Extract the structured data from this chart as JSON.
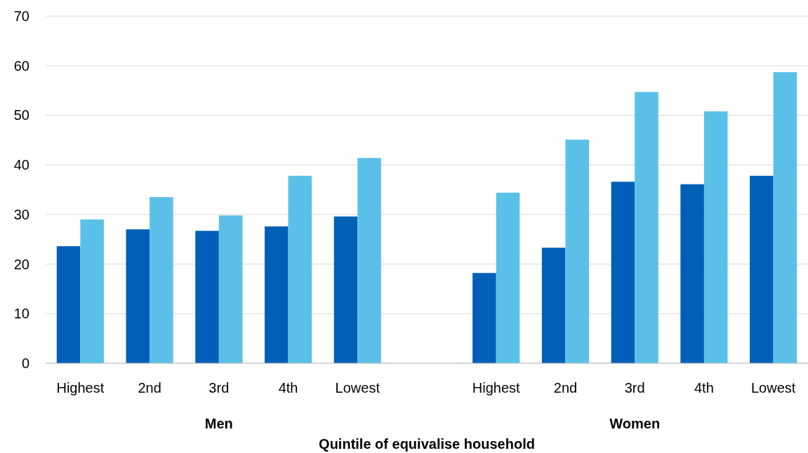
{
  "chart_data": {
    "type": "bar",
    "xlabel": "Quintile of equivalise household",
    "categories": [
      "Highest",
      "2nd",
      "3rd",
      "4th",
      "Lowest",
      null,
      "Highest",
      "2nd",
      "3rd",
      "4th",
      "Lowest"
    ],
    "series": [
      {
        "color": "#0060b8",
        "values": [
          23.6,
          27.0,
          26.7,
          27.6,
          29.6,
          null,
          18.2,
          23.3,
          36.6,
          36.1,
          37.8
        ]
      },
      {
        "color": "#5bc0e8",
        "values": [
          29.0,
          33.5,
          29.8,
          37.8,
          41.4,
          null,
          34.4,
          45.1,
          54.7,
          50.8,
          58.7
        ]
      }
    ],
    "annotations": [
      "Men",
      "Women"
    ],
    "ylim": [
      0,
      70
    ],
    "yticks": [
      0,
      10,
      20,
      30,
      40,
      50,
      60,
      70
    ],
    "grid": "y"
  }
}
